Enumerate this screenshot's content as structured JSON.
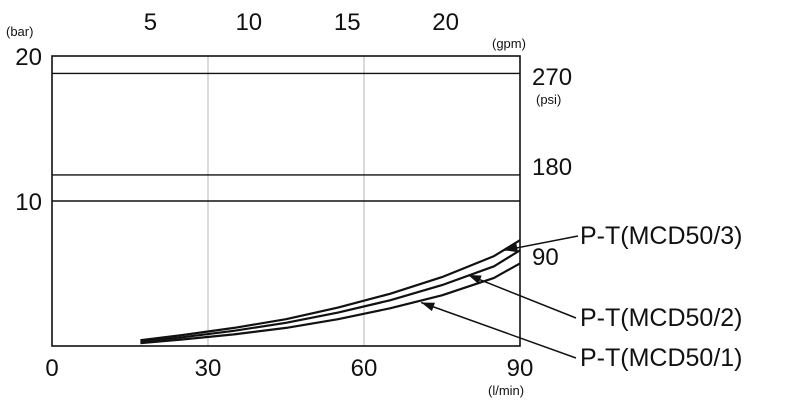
{
  "chart_data": {
    "type": "line",
    "title": "",
    "xlabel": "",
    "ylabel": "",
    "x_unit": "(l/min)",
    "y_unit": "(bar)",
    "secondary_x_unit": "(gpm)",
    "secondary_y_unit": "(psi)",
    "xlim": [
      0,
      90
    ],
    "ylim": [
      0,
      20
    ],
    "x_ticks": [
      0,
      30,
      60,
      90
    ],
    "y_ticks": [
      10,
      20
    ],
    "secondary_x_ticks": [
      5,
      10,
      15,
      20
    ],
    "secondary_y_ticks": [
      90,
      180,
      270
    ],
    "vertical_grid_x": [
      30,
      60
    ],
    "reference_lines_y": [
      10,
      11.8,
      18.8
    ],
    "series": [
      {
        "name": "P-T(MCD50/3)",
        "x": [
          17,
          25,
          35,
          45,
          55,
          65,
          75,
          85,
          90
        ],
        "y": [
          0.4,
          0.75,
          1.25,
          1.85,
          2.65,
          3.6,
          4.75,
          6.2,
          7.3
        ]
      },
      {
        "name": "P-T(MCD50/2)",
        "x": [
          17,
          25,
          35,
          45,
          55,
          65,
          75,
          85,
          90
        ],
        "y": [
          0.3,
          0.6,
          1.05,
          1.6,
          2.3,
          3.15,
          4.2,
          5.5,
          6.6
        ]
      },
      {
        "name": "P-T(MCD50/1)",
        "x": [
          17,
          25,
          35,
          45,
          55,
          65,
          75,
          85,
          90
        ],
        "y": [
          0.2,
          0.45,
          0.8,
          1.25,
          1.85,
          2.6,
          3.5,
          4.7,
          5.7
        ]
      }
    ],
    "annotation_targets": [
      {
        "series": 0,
        "x": 87,
        "y": 6.6
      },
      {
        "series": 1,
        "x": 80,
        "y": 4.9
      },
      {
        "series": 2,
        "x": 71,
        "y": 3.0
      }
    ]
  }
}
